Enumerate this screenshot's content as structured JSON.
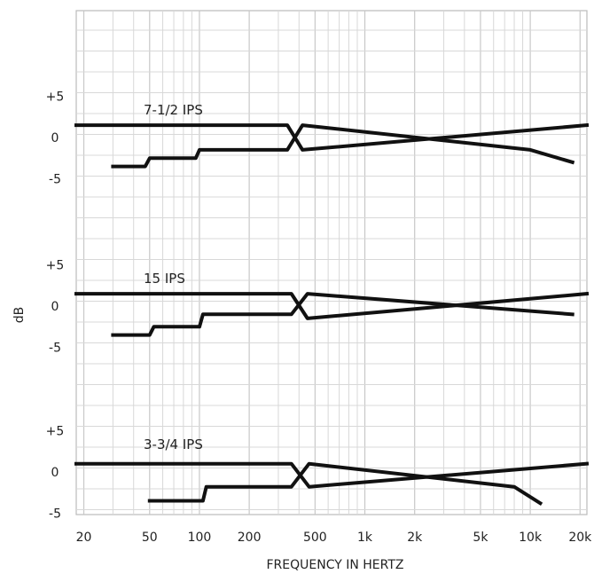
{
  "chart_data": {
    "type": "line",
    "title": "",
    "xlabel": "FREQUENCY IN HERTZ",
    "ylabel": "dB",
    "x_scale": "log",
    "xlim": [
      18,
      22000
    ],
    "x_ticks": [
      {
        "value": 20,
        "label": "20"
      },
      {
        "value": 50,
        "label": "50"
      },
      {
        "value": 100,
        "label": "100"
      },
      {
        "value": 200,
        "label": "200"
      },
      {
        "value": 500,
        "label": "500"
      },
      {
        "value": 1000,
        "label": "1k"
      },
      {
        "value": 2000,
        "label": "2k"
      },
      {
        "value": 5000,
        "label": "5k"
      },
      {
        "value": 10000,
        "label": "10k"
      },
      {
        "value": 20000,
        "label": "20k"
      }
    ],
    "grid": true,
    "panels": [
      {
        "label": "7-1/2 IPS",
        "ylim": [
          -10,
          10
        ],
        "y_ticks": [
          {
            "value": 5,
            "label": "+5"
          },
          {
            "value": 0,
            "label": "0"
          },
          {
            "value": -5,
            "label": "-5"
          }
        ],
        "series": [
          {
            "x": [
              18,
              340,
              420,
              22000
            ],
            "y": [
              1.5,
              1.5,
              -1.5,
              1.5
            ]
          },
          {
            "x": [
              30,
              47,
              50,
              95,
              100,
              340,
              420,
              10000,
              18000
            ],
            "y": [
              -3.5,
              -3.5,
              -2.5,
              -2.5,
              -1.5,
              -1.5,
              1.5,
              -1.5,
              -3
            ]
          }
        ]
      },
      {
        "label": "15 IPS",
        "ylim": [
          -10,
          10
        ],
        "y_ticks": [
          {
            "value": 5,
            "label": "+5"
          },
          {
            "value": 0,
            "label": "0"
          },
          {
            "value": -5,
            "label": "-5"
          }
        ],
        "series": [
          {
            "x": [
              18,
              360,
              450,
              22000
            ],
            "y": [
              1.5,
              1.5,
              -1.5,
              1.5
            ]
          },
          {
            "x": [
              30,
              50,
              53,
              100,
              105,
              360,
              450,
              18000
            ],
            "y": [
              -3.5,
              -3.5,
              -2.5,
              -2.5,
              -1,
              -1,
              1.5,
              -1
            ]
          }
        ]
      },
      {
        "label": "3-3/4 IPS",
        "ylim": [
          -5,
          10
        ],
        "y_ticks": [
          {
            "value": 5,
            "label": "+5"
          },
          {
            "value": 0,
            "label": "0"
          },
          {
            "value": -5,
            "label": "-5"
          }
        ],
        "series": [
          {
            "x": [
              18,
              360,
              460,
              22000
            ],
            "y": [
              1,
              1,
              -1.8,
              1
            ]
          },
          {
            "x": [
              50,
              105,
              110,
              360,
              460,
              8000,
              11500
            ],
            "y": [
              -3.5,
              -3.5,
              -1.8,
              -1.8,
              1,
              -1.8,
              -3.8
            ]
          }
        ]
      }
    ]
  }
}
